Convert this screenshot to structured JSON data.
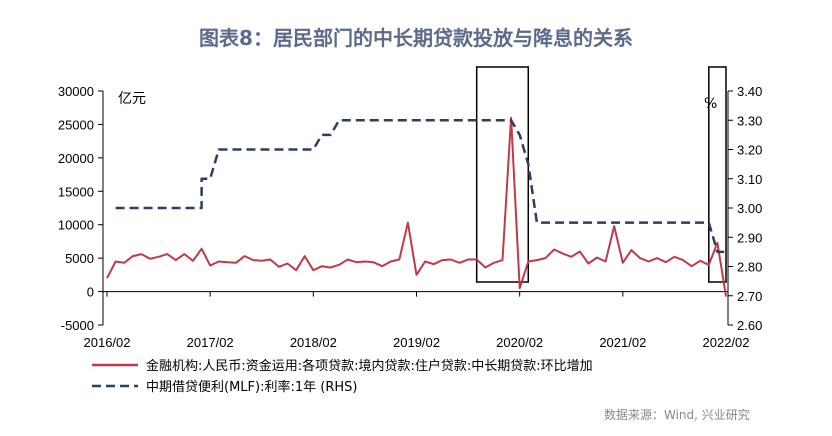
{
  "title": "图表8：居民部门的中长期贷款投放与降息的关系",
  "source": "数据来源：Wind, 兴业研究",
  "chart_data": {
    "type": "line",
    "left_unit": "亿元",
    "right_unit": "%",
    "left_axis": {
      "ylim": [
        -5000,
        30000
      ],
      "ticks": [
        "30000",
        "25000",
        "20000",
        "15000",
        "10000",
        "5000",
        "0",
        "-5000"
      ]
    },
    "right_axis": {
      "ylim": [
        2.6,
        3.4
      ],
      "ticks": [
        "3.40",
        "3.30",
        "3.20",
        "3.10",
        "3.00",
        "2.90",
        "2.80",
        "2.70",
        "2.60"
      ]
    },
    "x_labels": [
      "2016/02",
      "2017/02",
      "2018/02",
      "2019/02",
      "2020/02",
      "2021/02",
      "2022/02"
    ],
    "series": [
      {
        "name": "金融机构:人民币:资金运用:各项贷款:境内贷款:住户贷款:中长期贷款:环比增加",
        "color": "#c0394b",
        "style": "solid",
        "axis": "left",
        "x": [
          "2016-02",
          "2016-03",
          "2016-04",
          "2016-05",
          "2016-06",
          "2016-07",
          "2016-08",
          "2016-09",
          "2016-10",
          "2016-11",
          "2016-12",
          "2017-01",
          "2017-02",
          "2017-03",
          "2017-04",
          "2017-05",
          "2017-06",
          "2017-07",
          "2017-08",
          "2017-09",
          "2017-10",
          "2017-11",
          "2017-12",
          "2018-01",
          "2018-02",
          "2018-03",
          "2018-04",
          "2018-05",
          "2018-06",
          "2018-07",
          "2018-08",
          "2018-09",
          "2018-10",
          "2018-11",
          "2018-12",
          "2019-01",
          "2019-02",
          "2019-03",
          "2019-04",
          "2019-05",
          "2019-06",
          "2019-07",
          "2019-08",
          "2019-09",
          "2019-10",
          "2019-11",
          "2019-12",
          "2020-01",
          "2020-02",
          "2020-03",
          "2020-04",
          "2020-05",
          "2020-06",
          "2020-07",
          "2020-08",
          "2020-09",
          "2020-10",
          "2020-11",
          "2020-12",
          "2021-01",
          "2021-02",
          "2021-03",
          "2021-04",
          "2021-05",
          "2021-06",
          "2021-07",
          "2021-08",
          "2021-09",
          "2021-10",
          "2021-11",
          "2021-12",
          "2022-01",
          "2022-02"
        ],
        "values": [
          2000,
          4500,
          4300,
          5300,
          5600,
          4900,
          5200,
          5600,
          4700,
          5600,
          4600,
          6400,
          3900,
          4500,
          4400,
          4300,
          5300,
          4700,
          4600,
          4800,
          3700,
          4200,
          3200,
          5300,
          3200,
          3800,
          3600,
          4000,
          4800,
          4400,
          4500,
          4400,
          3800,
          4500,
          4800,
          10300,
          2500,
          4500,
          4100,
          4700,
          4800,
          4300,
          4800,
          4800,
          3600,
          4300,
          4700,
          26000,
          500,
          4500,
          4700,
          5000,
          6300,
          5700,
          5200,
          6000,
          4200,
          5100,
          4500,
          9800,
          4300,
          6200,
          5000,
          4500,
          5000,
          4400,
          5200,
          4700,
          3800,
          4600,
          4000,
          7300,
          -700
        ]
      },
      {
        "name": "中期借贷便利(MLF):利率:1年 (RHS)",
        "color": "#2d3e63",
        "style": "dashed",
        "axis": "right",
        "x": [
          "2016-03",
          "2017-01",
          "2017-01",
          "2017-02",
          "2017-03",
          "2018-02",
          "2018-03",
          "2018-04",
          "2018-05",
          "2020-01",
          "2020-02",
          "2020-03",
          "2020-04",
          "2021-12",
          "2022-01",
          "2022-02"
        ],
        "values": [
          3.0,
          3.0,
          3.1,
          3.1,
          3.2,
          3.2,
          3.25,
          3.25,
          3.3,
          3.3,
          3.25,
          3.15,
          2.95,
          2.95,
          2.85,
          2.85
        ]
      }
    ],
    "highlight_boxes": [
      {
        "from": "2019-09",
        "to": "2020-03"
      },
      {
        "from": "2021-12",
        "to": "2022-02"
      }
    ],
    "grid": false,
    "legend_position": "bottom"
  }
}
